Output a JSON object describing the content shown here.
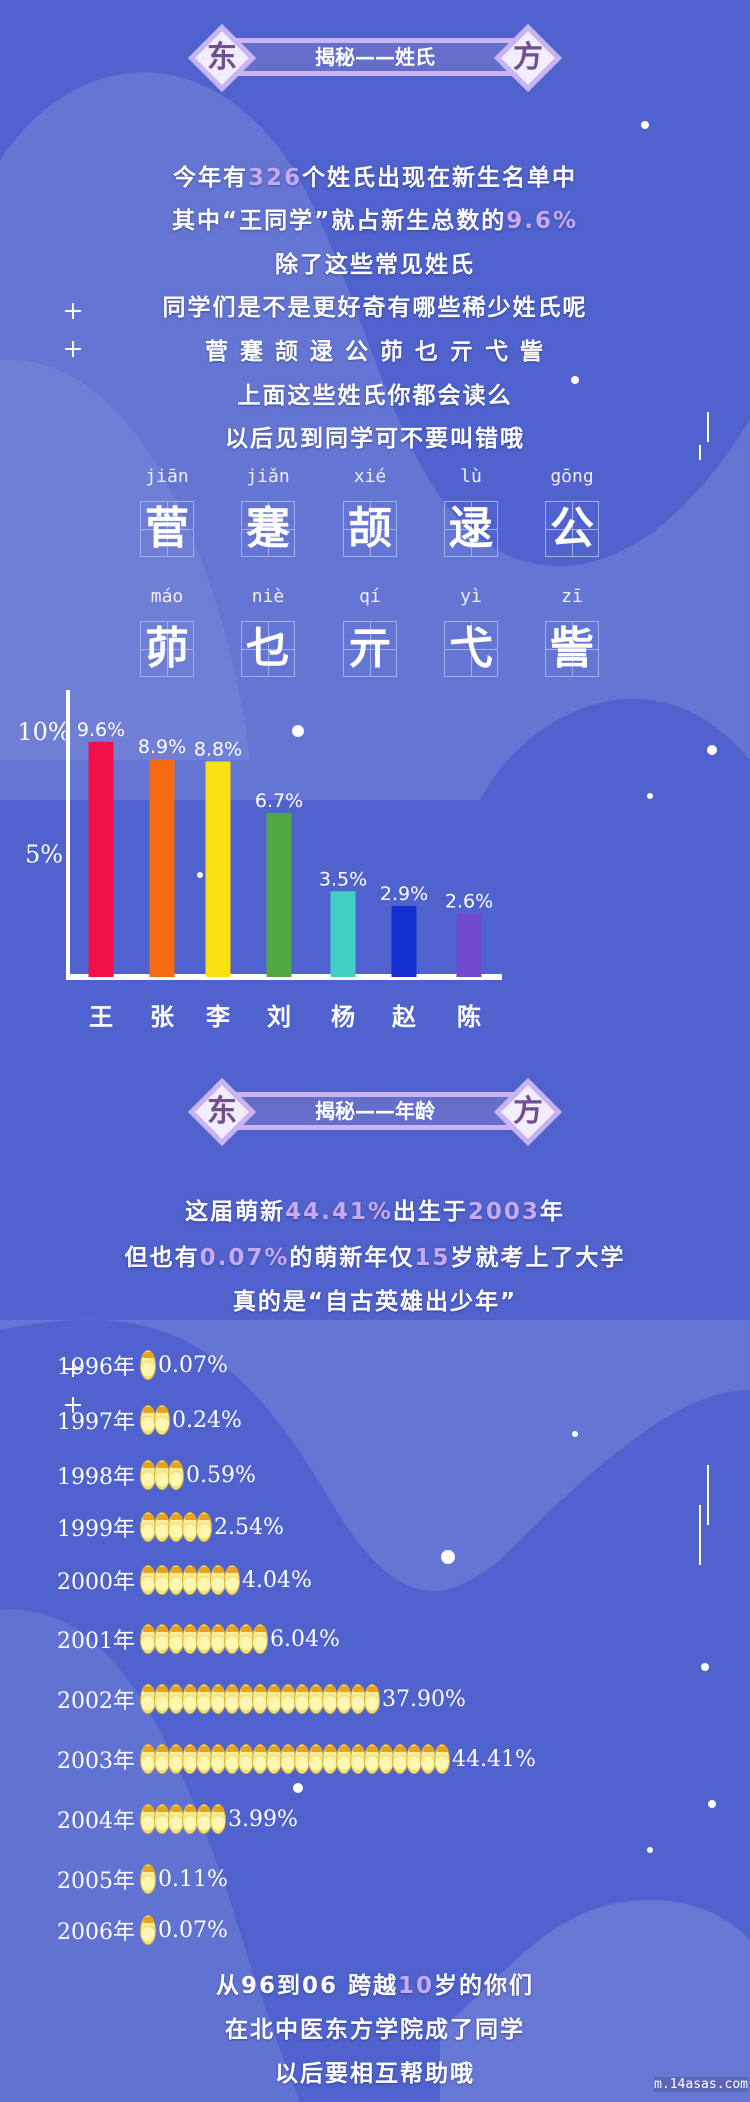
{
  "colors": {
    "background": "#4f62cd",
    "highlight": "#c6a9f3",
    "banner_border": "#c9b3f2"
  },
  "section1": {
    "left_char": "东",
    "title": "揭秘——姓氏",
    "right_char": "方",
    "lines": [
      {
        "pre": "今年有",
        "hl": "326",
        "post": "个姓氏出现在新生名单中"
      },
      {
        "pre": "其中“王同学”就占新生总数的",
        "hl": "9.6%",
        "post": ""
      },
      {
        "pre": "除了这些常见姓氏",
        "hl": "",
        "post": ""
      },
      {
        "pre": "同学们是不是更好奇有哪些稀少姓氏呢",
        "hl": "",
        "post": ""
      },
      {
        "pre": "菅 蹇 颉 逯 公 茆 乜 亓 弋 訾",
        "hl": "",
        "post": ""
      },
      {
        "pre": "上面这些姓氏你都会读么",
        "hl": "",
        "post": ""
      },
      {
        "pre": "以后见到同学可不要叫错哦",
        "hl": "",
        "post": ""
      }
    ],
    "rare_surnames": [
      {
        "pinyin": "jiān",
        "char": "菅"
      },
      {
        "pinyin": "jiǎn",
        "char": "蹇"
      },
      {
        "pinyin": "xié",
        "char": "颉"
      },
      {
        "pinyin": "lù",
        "char": "逯"
      },
      {
        "pinyin": "gōng",
        "char": "公"
      },
      {
        "pinyin": "máo",
        "char": "茆"
      },
      {
        "pinyin": "niè",
        "char": "乜"
      },
      {
        "pinyin": "qí",
        "char": "亓"
      },
      {
        "pinyin": "yì",
        "char": "弋"
      },
      {
        "pinyin": "zī",
        "char": "訾"
      }
    ]
  },
  "chart_data": {
    "type": "bar",
    "categories": [
      "王",
      "张",
      "李",
      "刘",
      "杨",
      "赵",
      "陈"
    ],
    "values": [
      9.6,
      8.9,
      8.8,
      6.7,
      3.5,
      2.9,
      2.6
    ],
    "labels": [
      "9.6%",
      "8.9%",
      "8.8%",
      "6.7%",
      "3.5%",
      "2.9%",
      "2.6%"
    ],
    "colors": [
      "#f1104a",
      "#f66a12",
      "#f9e010",
      "#51a843",
      "#40d0c3",
      "#1430d0",
      "#7049cf"
    ],
    "yticks": [
      {
        "value": 10,
        "label": "10%"
      },
      {
        "value": 5,
        "label": "5%"
      }
    ],
    "ylim": [
      0,
      10
    ],
    "grid": false,
    "xlabel": "",
    "ylabel": ""
  },
  "section2": {
    "left_char": "东",
    "title": "揭秘——年龄",
    "right_char": "方",
    "lines": [
      {
        "pre": "这届萌新",
        "hl": "44.41%",
        "mid": "出生于",
        "hl2": "2003",
        "post": "年"
      },
      {
        "pre": "但也有",
        "hl": "0.07%",
        "mid": "的萌新年仅",
        "hl2": "15",
        "post": "岁就考上了大学"
      },
      {
        "pre": "真的是“自古英雄出少年”",
        "hl": "",
        "mid": "",
        "hl2": "",
        "post": ""
      }
    ],
    "years": [
      {
        "year": "1996年",
        "pct": "0.07%",
        "icons": 1
      },
      {
        "year": "1997年",
        "pct": "0.24%",
        "icons": 2
      },
      {
        "year": "1998年",
        "pct": "0.59%",
        "icons": 3
      },
      {
        "year": "1999年",
        "pct": "2.54%",
        "icons": 5
      },
      {
        "year": "2000年",
        "pct": "4.04%",
        "icons": 7
      },
      {
        "year": "2001年",
        "pct": "6.04%",
        "icons": 9
      },
      {
        "year": "2002年",
        "pct": "37.90%",
        "icons": 17
      },
      {
        "year": "2003年",
        "pct": "44.41%",
        "icons": 22
      },
      {
        "year": "2004年",
        "pct": "3.99%",
        "icons": 6
      },
      {
        "year": "2005年",
        "pct": "0.11%",
        "icons": 1
      },
      {
        "year": "2006年",
        "pct": "0.07%",
        "icons": 1
      }
    ],
    "closing": [
      {
        "pre": "从96到06 跨越",
        "hl": "10",
        "post": "岁的你们"
      },
      {
        "pre": "在北中医东方学院成了同学",
        "hl": "",
        "post": ""
      },
      {
        "pre": "以后要相互帮助哦",
        "hl": "",
        "post": ""
      }
    ]
  },
  "watermark": "m.14asas.com"
}
